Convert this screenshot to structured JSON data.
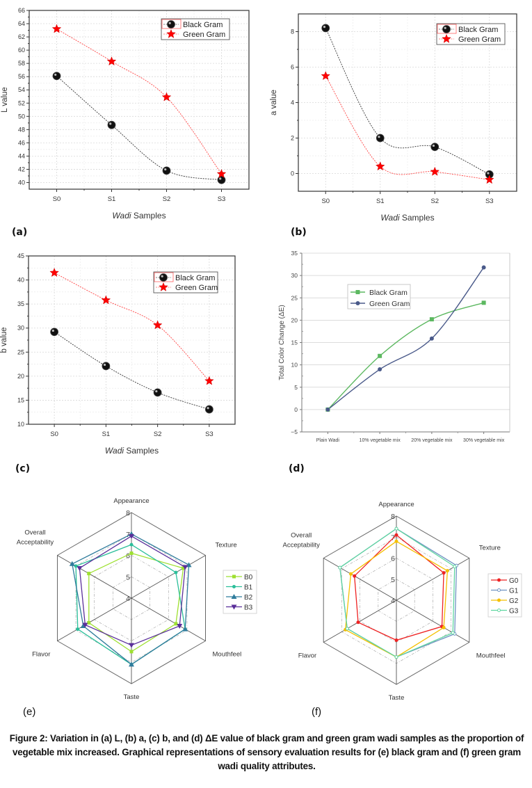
{
  "figure": {
    "caption": "Figure 2: Variation in (a) L, (b) a, (c) b, and (d) ΔE value of black gram and green gram wadi samples as the proportion of vegetable mix increased. Graphical representations of sensory evaluation results for (e) black gram and (f) green gram wadi quality attributes.",
    "panel_labels": [
      "(a)",
      "(b)",
      "(c)",
      "(d)",
      "(e)",
      "(f)"
    ]
  },
  "chart_data": [
    {
      "id": "a",
      "type": "line",
      "title": "",
      "xlabel_italic": "Wadi",
      "xlabel_rest": " Samples",
      "ylabel": "L value",
      "categories": [
        "S0",
        "S1",
        "S2",
        "S3"
      ],
      "ylim": [
        39,
        66
      ],
      "yticks": [
        40,
        42,
        44,
        46,
        48,
        50,
        52,
        54,
        56,
        58,
        60,
        62,
        64,
        66
      ],
      "grid": true,
      "legend_position": "top-right",
      "series": [
        {
          "name": "Black Gram",
          "marker": "sphere",
          "color": "#000000",
          "values": [
            56.1,
            48.7,
            41.8,
            40.4
          ]
        },
        {
          "name": "Green Gram",
          "marker": "star",
          "color": "#ff0000",
          "values": [
            63.2,
            58.3,
            52.9,
            41.3
          ]
        }
      ]
    },
    {
      "id": "b",
      "type": "line",
      "title": "",
      "xlabel_italic": "Wadi",
      "xlabel_rest": " Samples",
      "ylabel": "a value",
      "categories": [
        "S0",
        "S1",
        "S2",
        "S3"
      ],
      "ylim": [
        -1,
        9
      ],
      "yticks": [
        0,
        2,
        4,
        6,
        8
      ],
      "grid": true,
      "legend_position": "top-right",
      "series": [
        {
          "name": "Black Gram",
          "marker": "sphere",
          "color": "#000000",
          "values": [
            8.2,
            2.0,
            1.5,
            -0.05
          ]
        },
        {
          "name": "Green Gram",
          "marker": "star",
          "color": "#ff0000",
          "values": [
            5.5,
            0.4,
            0.1,
            -0.35
          ]
        }
      ]
    },
    {
      "id": "c",
      "type": "line",
      "title": "",
      "xlabel_italic": "Wadi",
      "xlabel_rest": " Samples",
      "ylabel": "b value",
      "categories": [
        "S0",
        "S1",
        "S2",
        "S3"
      ],
      "ylim": [
        10,
        45
      ],
      "yticks": [
        10,
        15,
        20,
        25,
        30,
        35,
        40,
        45
      ],
      "grid": true,
      "legend_position": "top-right",
      "series": [
        {
          "name": "Black Gram",
          "marker": "sphere",
          "color": "#000000",
          "values": [
            29.2,
            22.1,
            16.6,
            13.1
          ]
        },
        {
          "name": "Green Gram",
          "marker": "star",
          "color": "#ff0000",
          "values": [
            41.5,
            35.8,
            30.6,
            19.0
          ]
        }
      ]
    },
    {
      "id": "d",
      "type": "line",
      "title": "",
      "xlabel": "",
      "ylabel": "Total Color Change (ΔE)",
      "categories": [
        "Plain Wadi",
        "10% vegetable mix",
        "20% vegetable mix",
        "30% vegetable mix"
      ],
      "ylim": [
        -5,
        35
      ],
      "yticks": [
        -5,
        0,
        5,
        10,
        15,
        20,
        25,
        30,
        35
      ],
      "grid": true,
      "legend_position": "upper-left",
      "series": [
        {
          "name": "Black Gram",
          "marker": "square",
          "color": "#5cb860",
          "values": [
            0,
            12.0,
            20.2,
            23.9
          ]
        },
        {
          "name": "Green Gram",
          "marker": "circle",
          "color": "#4a5a8a",
          "values": [
            0,
            9.0,
            15.9,
            31.8
          ]
        }
      ]
    },
    {
      "id": "e",
      "type": "radar",
      "title": "",
      "axes": [
        "Appearance",
        "Texture",
        "Mouthfeel",
        "Taste",
        "Flavor",
        "Overall Acceptability"
      ],
      "rlim": [
        4,
        8
      ],
      "rticks": [
        4,
        5,
        6,
        7,
        8
      ],
      "legend_position": "right",
      "series": [
        {
          "name": "B0",
          "marker": "square",
          "color": "#9ee030",
          "values": [
            6.1,
            6.8,
            6.4,
            6.5,
            6.3,
            6.3
          ]
        },
        {
          "name": "B1",
          "marker": "circle",
          "color": "#2bbf9a",
          "values": [
            6.5,
            6.4,
            6.9,
            7.1,
            6.9,
            7.0
          ]
        },
        {
          "name": "B2",
          "marker": "triangle-up",
          "color": "#2f7c9c",
          "values": [
            7.0,
            7.1,
            6.9,
            7.1,
            6.6,
            7.2
          ]
        },
        {
          "name": "B3",
          "marker": "triangle-down",
          "color": "#5a2f9a",
          "values": [
            6.9,
            6.9,
            6.6,
            6.2,
            6.5,
            6.8
          ]
        }
      ]
    },
    {
      "id": "f",
      "type": "radar",
      "title": "",
      "axes": [
        "Appearance",
        "Texture",
        "Mouthfeel",
        "Taste",
        "Flavor",
        "Overall Acceptability"
      ],
      "rlim": [
        4,
        8
      ],
      "rticks": [
        4,
        5,
        6,
        7,
        8
      ],
      "legend_position": "right",
      "series": [
        {
          "name": "G0",
          "marker": "circle",
          "color": "#ee2222",
          "values": [
            7.1,
            6.6,
            6.5,
            5.9,
            6.1,
            6.3
          ]
        },
        {
          "name": "G1",
          "marker": "hollow-circle",
          "color": "#6f93c2",
          "values": [
            7.4,
            7.3,
            7.2,
            6.7,
            6.7,
            7.1
          ]
        },
        {
          "name": "G2",
          "marker": "circle",
          "color": "#f5c000",
          "values": [
            6.8,
            6.8,
            6.6,
            6.7,
            6.8,
            6.5
          ]
        },
        {
          "name": "G3",
          "marker": "hollow-circle",
          "color": "#5fd6a0",
          "values": [
            7.4,
            7.2,
            7.1,
            6.7,
            6.7,
            7.1
          ]
        }
      ]
    }
  ]
}
